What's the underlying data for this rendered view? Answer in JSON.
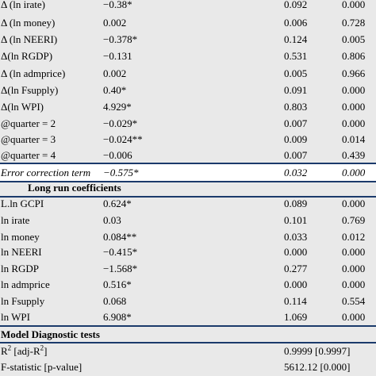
{
  "short_run_rows": [
    {
      "var": "Δ (ln irate)",
      "coef": "−0.38*",
      "se": "0.092",
      "p": "0.000"
    },
    {
      "var": "Δ (ln money)",
      "coef": "0.002",
      "se": "0.006",
      "p": "0.728"
    },
    {
      "var": "Δ (ln NEERI)",
      "coef": "−0.378*",
      "se": "0.124",
      "p": "0.005"
    },
    {
      "var": "Δ(ln RGDP)",
      "coef": "−0.131",
      "se": "0.531",
      "p": "0.806"
    },
    {
      "var": "Δ (ln admprice)",
      "coef": "0.002",
      "se": "0.005",
      "p": "0.966"
    },
    {
      "var": "Δ(ln Fsupply)",
      "coef": "0.40*",
      "se": "0.091",
      "p": "0.000"
    },
    {
      "var": "Δ(ln WPI)",
      "coef": "4.929*",
      "se": "0.803",
      "p": "0.000"
    },
    {
      "var": "@quarter = 2",
      "coef": "−0.029*",
      "se": "0.007",
      "p": "0.000"
    },
    {
      "var": "@quarter = 3",
      "coef": "−0.024**",
      "se": "0.009",
      "p": "0.014"
    },
    {
      "var": "@quarter = 4",
      "coef": "−0.006",
      "se": "0.007",
      "p": "0.439"
    }
  ],
  "error_correction": {
    "var": "Error correction term",
    "coef": "−0.575*",
    "se": "0.032",
    "p": "0.000"
  },
  "long_run_heading": "Long run coefficients",
  "long_run_rows": [
    {
      "var": "L.ln GCPI",
      "coef": "0.624*",
      "se": "0.089",
      "p": "0.000"
    },
    {
      "var": "ln irate",
      "coef": "0.03",
      "se": "0.101",
      "p": "0.769"
    },
    {
      "var": "ln money",
      "coef": "0.084**",
      "se": "0.033",
      "p": "0.012"
    },
    {
      "var": "ln NEERI",
      "coef": "−0.415*",
      "se": "0.000",
      "p": "0.000"
    },
    {
      "var": "ln RGDP",
      "coef": "−1.568*",
      "se": "0.277",
      "p": "0.000"
    },
    {
      "var": "ln admprice",
      "coef": "0.516*",
      "se": "0.000",
      "p": "0.000"
    },
    {
      "var": "ln Fsupply",
      "coef": "0.068",
      "se": "0.114",
      "p": "0.554"
    },
    {
      "var": "ln WPI",
      "coef": "6.908*",
      "se": "1.069",
      "p": "0.000"
    }
  ],
  "diagnostics_heading": "Model Diagnostic tests",
  "diagnostics": [
    {
      "label_main": "R",
      "label_sup": "2",
      "label_rest": " [adj-R",
      "label_sup2": "2",
      "label_end": "]",
      "value": "0.9999 [0.9997]"
    },
    {
      "label": "F-statistic [p-value]",
      "value": "5612.12 [0.000]"
    }
  ],
  "colors": {
    "row_bg": "#e9e9e9",
    "rule": "#1b3a6b",
    "highlight_bg": "#ffffff"
  }
}
